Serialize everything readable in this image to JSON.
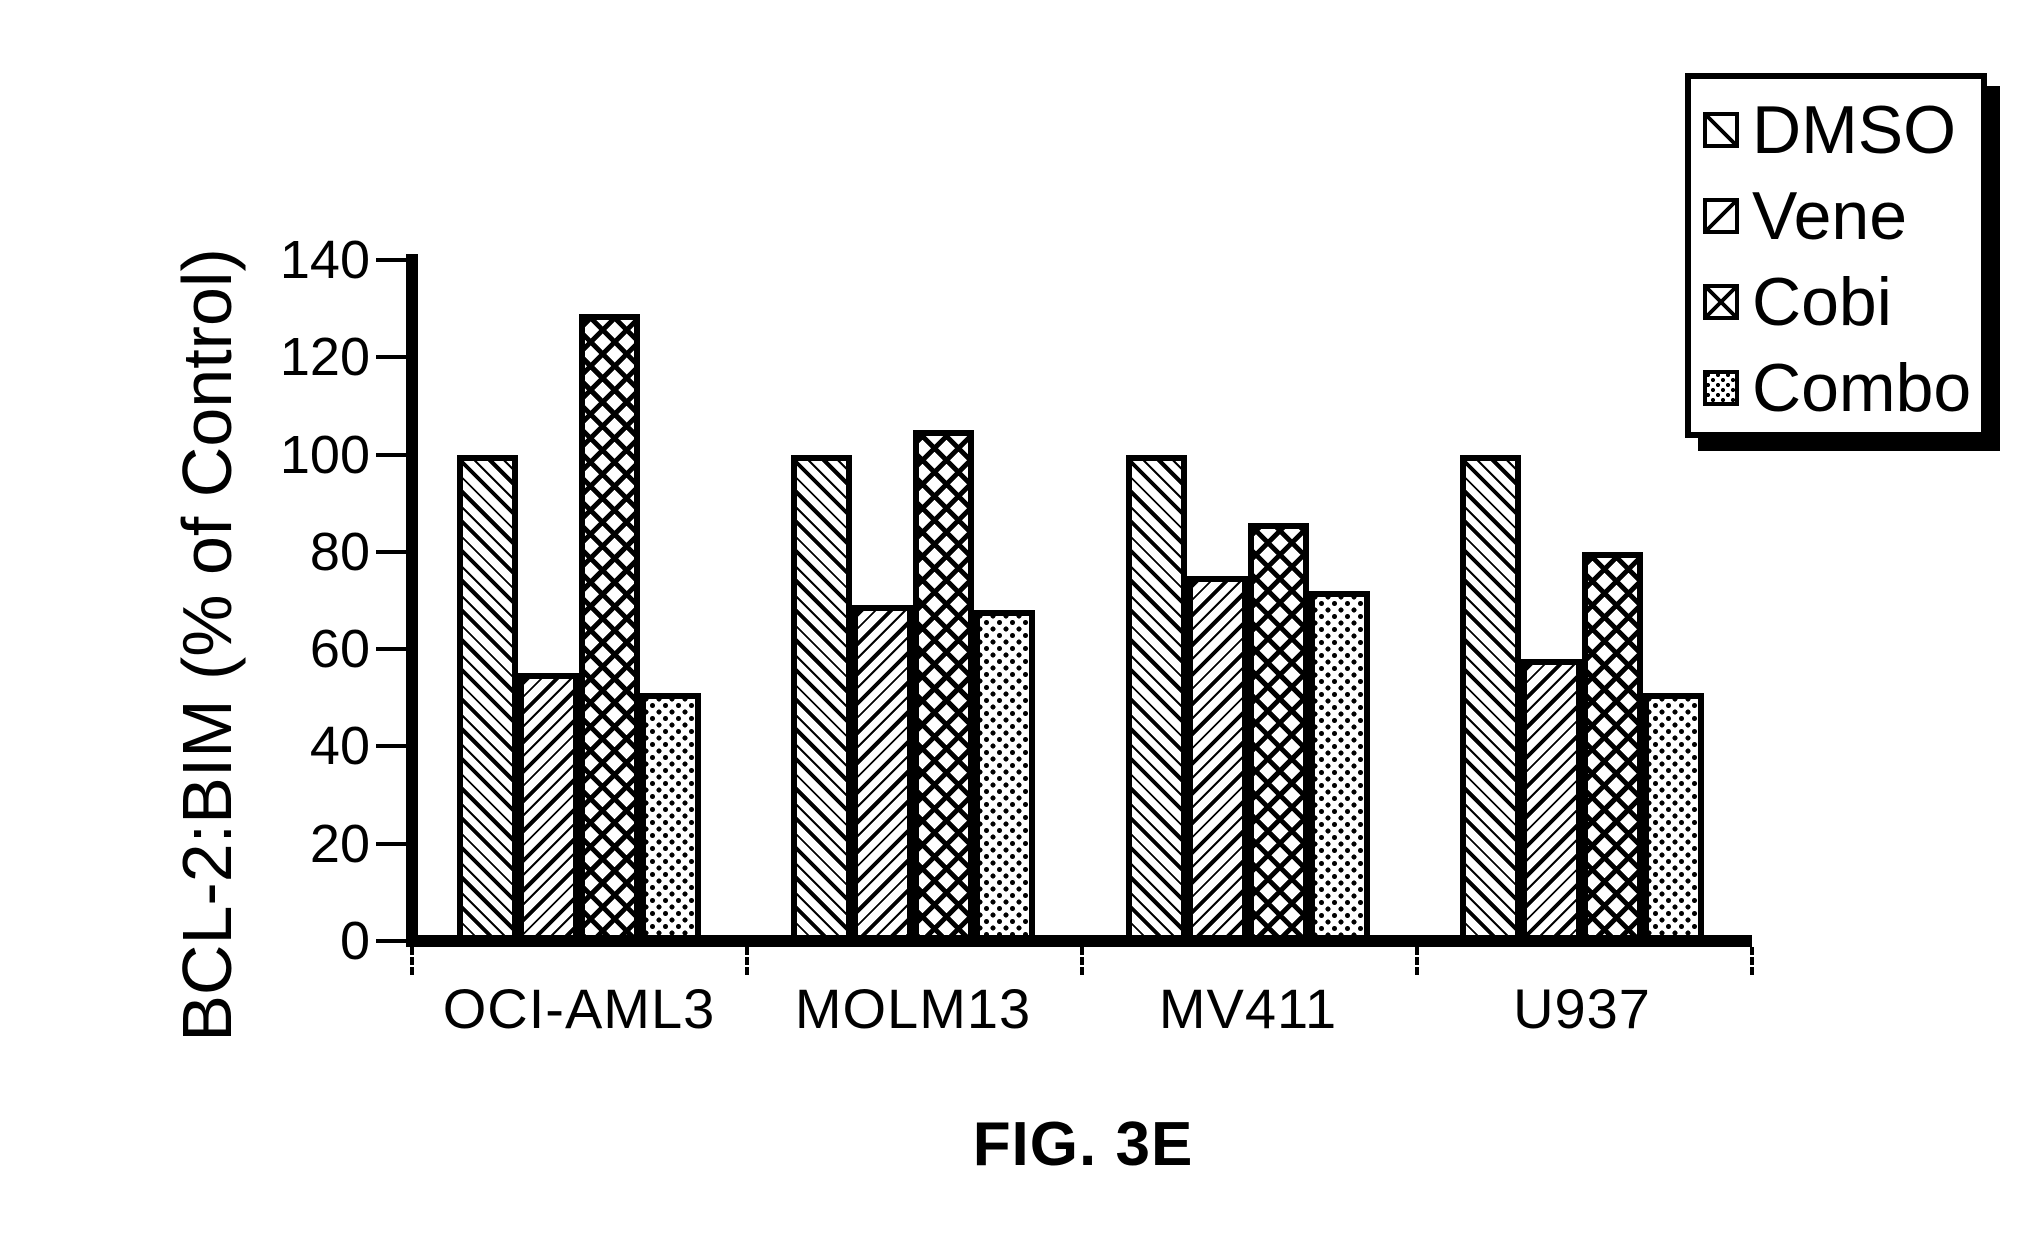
{
  "figure_caption": "FIG. 3E",
  "chart_data": {
    "type": "bar",
    "title": "",
    "xlabel": "",
    "ylabel": "BCL-2:BIM (% of Control)",
    "ylim": [
      0,
      140
    ],
    "yticks": [
      0,
      20,
      40,
      60,
      80,
      100,
      120,
      140
    ],
    "grid": false,
    "legend_position": "top-right",
    "categories": [
      "OCI-AML3",
      "MOLM13",
      "MV411",
      "U937"
    ],
    "series": [
      {
        "name": "DMSO",
        "pattern": "diagonal-down-hatch",
        "values": [
          100,
          100,
          100,
          100
        ]
      },
      {
        "name": "Vene",
        "pattern": "diagonal-up-hatch",
        "values": [
          55,
          69,
          75,
          58
        ]
      },
      {
        "name": "Cobi",
        "pattern": "crosshatch",
        "values": [
          129,
          105,
          86,
          80
        ]
      },
      {
        "name": "Combo",
        "pattern": "dot-stipple",
        "values": [
          51,
          68,
          72,
          51
        ]
      }
    ],
    "colors": {
      "ink": "#000000",
      "background": "#ffffff"
    }
  }
}
